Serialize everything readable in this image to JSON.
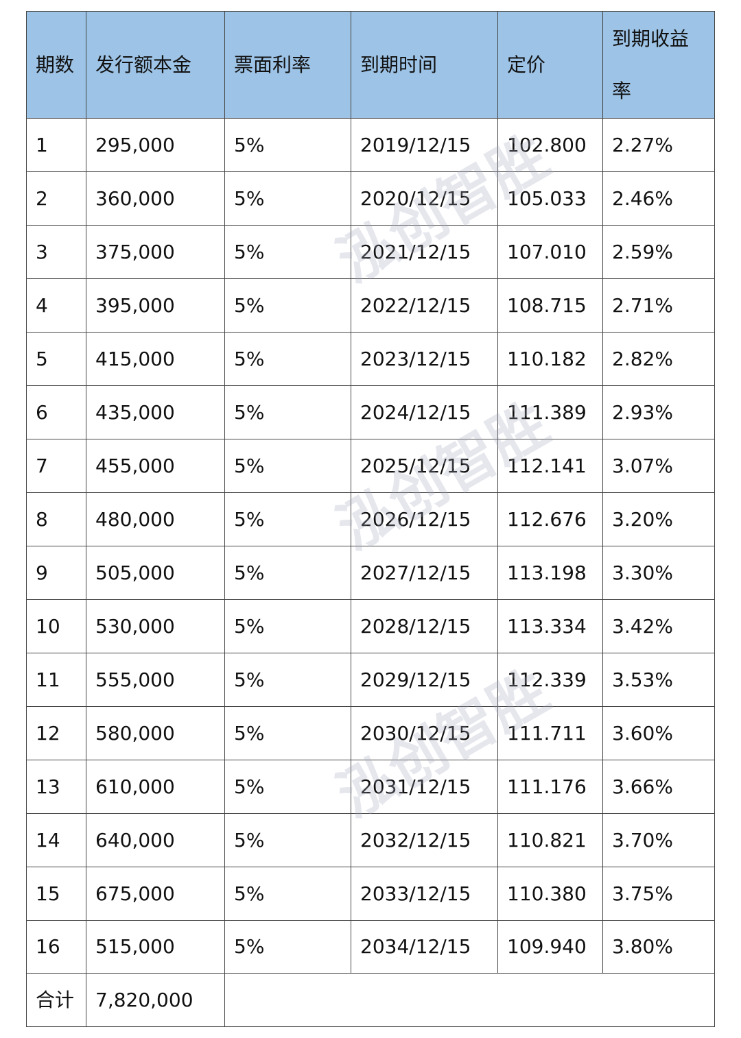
{
  "table": {
    "header": [
      "期数",
      "发行额本金",
      "票面利率",
      "到期时间",
      "定价",
      "到期收益率"
    ],
    "rows": [
      [
        "1",
        "295,000",
        "5%",
        "2019/12/15",
        "102.800",
        "2.27%"
      ],
      [
        "2",
        "360,000",
        "5%",
        "2020/12/15",
        "105.033",
        "2.46%"
      ],
      [
        "3",
        "375,000",
        "5%",
        "2021/12/15",
        "107.010",
        "2.59%"
      ],
      [
        "4",
        "395,000",
        "5%",
        "2022/12/15",
        "108.715",
        "2.71%"
      ],
      [
        "5",
        "415,000",
        "5%",
        "2023/12/15",
        "110.182",
        "2.82%"
      ],
      [
        "6",
        "435,000",
        "5%",
        "2024/12/15",
        "111.389",
        "2.93%"
      ],
      [
        "7",
        "455,000",
        "5%",
        "2025/12/15",
        "112.141",
        "3.07%"
      ],
      [
        "8",
        "480,000",
        "5%",
        "2026/12/15",
        "112.676",
        "3.20%"
      ],
      [
        "9",
        "505,000",
        "5%",
        "2027/12/15",
        "113.198",
        "3.30%"
      ],
      [
        "10",
        "530,000",
        "5%",
        "2028/12/15",
        "113.334",
        "3.42%"
      ],
      [
        "11",
        "555,000",
        "5%",
        "2029/12/15",
        "112.339",
        "3.53%"
      ],
      [
        "12",
        "580,000",
        "5%",
        "2030/12/15",
        "111.711",
        "3.60%"
      ],
      [
        "13",
        "610,000",
        "5%",
        "2031/12/15",
        "111.176",
        "3.66%"
      ],
      [
        "14",
        "640,000",
        "5%",
        "2032/12/15",
        "110.821",
        "3.70%"
      ],
      [
        "15",
        "675,000",
        "5%",
        "2033/12/15",
        "110.380",
        "3.75%"
      ],
      [
        "16",
        "515,000",
        "5%",
        "2034/12/15",
        "109.940",
        "3.80%"
      ]
    ],
    "total": [
      "合计",
      "7,820,000"
    ]
  },
  "watermark": "泓创智胜"
}
